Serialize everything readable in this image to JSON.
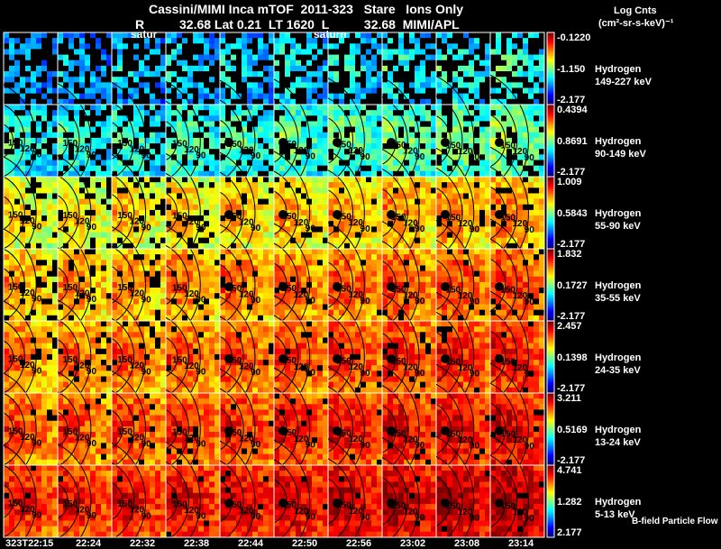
{
  "header": {
    "title_line1": "Cassini/MIMI Inca mTOF  2011-323   Stare   Ions Only",
    "title_line2": "R          32.68 Lat 0.21  LT 1620  L          32.68  MIMI/APL",
    "saturn_labels": [
      "satur",
      "saturn"
    ],
    "units_line1": "Log Cnts",
    "units_line2": "(cm²-sr-s-keV)⁻¹"
  },
  "footer": {
    "legend": "B-field Particle Flow"
  },
  "chart_data": {
    "type": "heatmap",
    "title": "Cassini/MIMI Inca mTOF 2011-323 Stare Ions Only",
    "x_tick_labels": [
      "323T22:15",
      "22:24",
      "22:32",
      "22:38",
      "22:44",
      "22:50",
      "22:56",
      "23:02",
      "23:08",
      "23:14"
    ],
    "colormap": "jet",
    "no_data_color": "#000000",
    "contour_labels": [
      "150",
      "120",
      "90",
      "60"
    ],
    "rows": [
      {
        "species": "Hydrogen",
        "energy": "149-227 keV",
        "cb_max": "-0.1220",
        "cb_mid": "-1.150",
        "cb_min": "-2.177",
        "mean_level": 0.25,
        "fill": 0.55
      },
      {
        "species": "Hydrogen",
        "energy": "90-149 keV",
        "cb_max": "0.4394",
        "cb_mid": "0.8691",
        "cb_min": "-2.177",
        "mean_level": 0.35,
        "fill": 0.8
      },
      {
        "species": "Hydrogen",
        "energy": "55-90 keV",
        "cb_max": "1.009",
        "cb_mid": "0.5843",
        "cb_min": "-2.177",
        "mean_level": 0.58,
        "fill": 0.9
      },
      {
        "species": "Hydrogen",
        "energy": "35-55 keV",
        "cb_max": "1.832",
        "cb_mid": "0.1727",
        "cb_min": "-2.177",
        "mean_level": 0.66,
        "fill": 0.93
      },
      {
        "species": "Hydrogen",
        "energy": "24-35 keV",
        "cb_max": "2.457",
        "cb_mid": "0.1398",
        "cb_min": "-2.177",
        "mean_level": 0.7,
        "fill": 0.95
      },
      {
        "species": "Hydrogen",
        "energy": "13-24 keV",
        "cb_max": "3.211",
        "cb_mid": "0.5169",
        "cb_min": "-2.177",
        "mean_level": 0.74,
        "fill": 0.96
      },
      {
        "species": "Hydrogen",
        "energy": "5-13 keV",
        "cb_max": "4.741",
        "cb_mid": "1.282",
        "cb_min": "2.177",
        "mean_level": 0.8,
        "fill": 0.97
      }
    ]
  }
}
